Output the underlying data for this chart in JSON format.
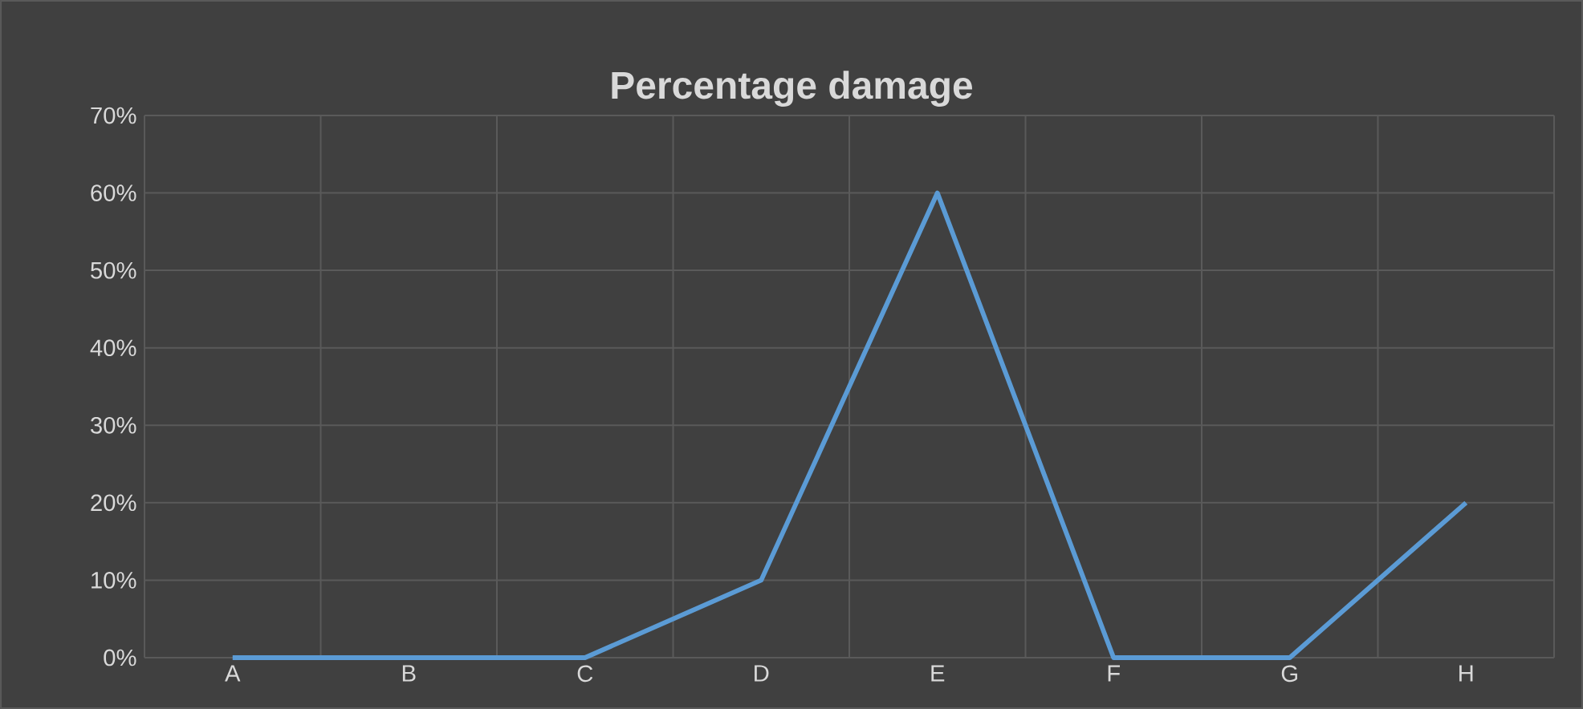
{
  "chart_data": {
    "type": "line",
    "title": "Percentage damage",
    "categories": [
      "A",
      "B",
      "C",
      "D",
      "E",
      "F",
      "G",
      "H"
    ],
    "series": [
      {
        "color": "#5b9bd5",
        "values": [
          0,
          0,
          0,
          10,
          60,
          0,
          0,
          20
        ]
      }
    ],
    "ylim": [
      0,
      70
    ],
    "yticks": [
      {
        "value": 0,
        "label": "0%"
      },
      {
        "value": 10,
        "label": "10%"
      },
      {
        "value": 20,
        "label": "20%"
      },
      {
        "value": 30,
        "label": "30%"
      },
      {
        "value": 40,
        "label": "40%"
      },
      {
        "value": 50,
        "label": "50%"
      },
      {
        "value": 60,
        "label": "60%"
      },
      {
        "value": 70,
        "label": "70%"
      }
    ],
    "grid": true,
    "marker": "none",
    "line_style": "solid"
  }
}
